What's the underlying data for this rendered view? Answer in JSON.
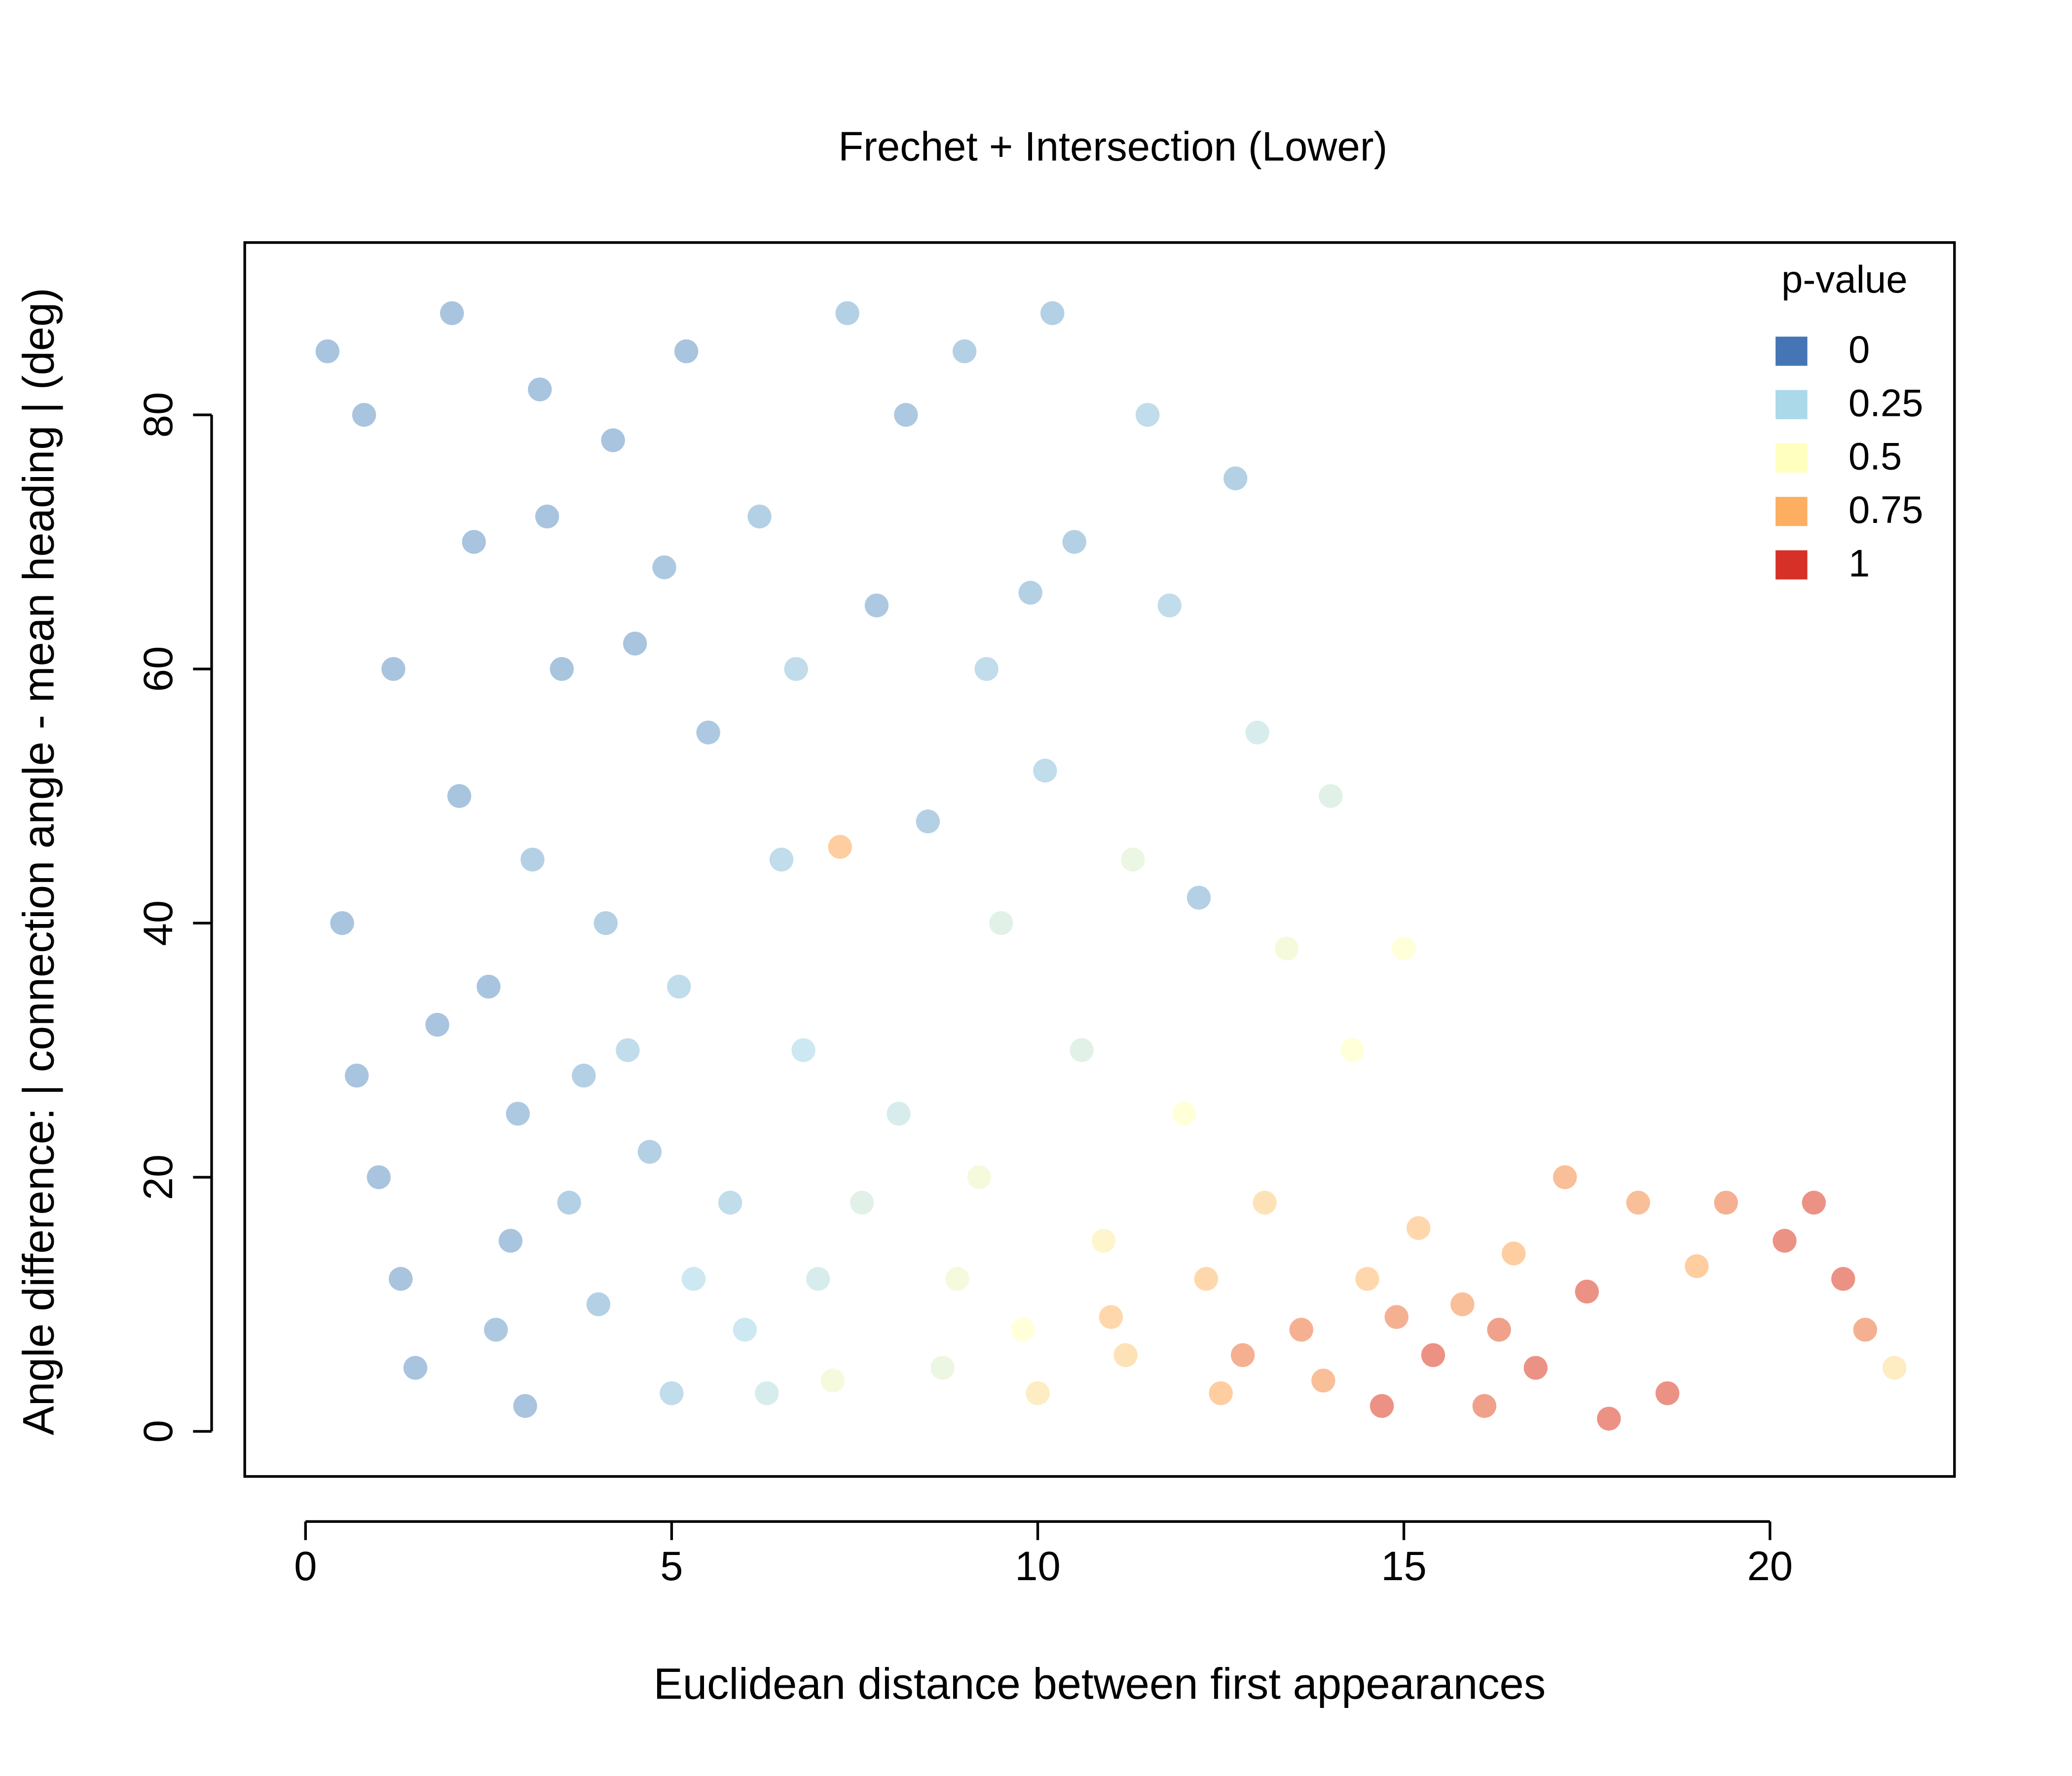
{
  "chart_data": {
    "type": "scatter",
    "title": "Frechet + Intersection (Lower)",
    "x_label": "Euclidean distance between first appearances",
    "y_label": "Angle difference: | connection angle - mean heading | (deg)",
    "xlim": [
      -0.83,
      22.52
    ],
    "ylim": [
      -3.55,
      93.56
    ],
    "xticks": [
      0,
      5,
      10,
      15,
      20
    ],
    "yticks": [
      0,
      20,
      40,
      60,
      80
    ],
    "legend": {
      "title": "p-value",
      "position": "top-right",
      "ticks": [
        0,
        0.25,
        0.5,
        0.75,
        1
      ],
      "colors": [
        "#4575b4",
        "#abd9e9",
        "#ffffbf",
        "#fdae61",
        "#d73027"
      ]
    },
    "x": [
      0.8,
      1.2,
      0.5,
      1.0,
      1.5,
      2,
      2.3,
      2.1,
      2.5,
      2.8,
      3,
      3.2,
      3.5,
      3.1,
      3.8,
      4,
      4.2,
      4.5,
      4.1,
      4.7,
      5,
      5.2,
      5.5,
      5.1,
      5.8,
      6,
      6.2,
      6.5,
      6.8,
      7.0,
      7.4,
      7.8,
      8.2,
      8.5,
      8.1,
      8.7,
      9.0,
      9.3,
      9.5,
      9.2,
      9.8,
      10.2,
      10.5,
      10.1,
      10.6,
      10.9,
      11.2,
      11.5,
      11.8,
      11.3,
      12.0,
      12.3,
      12.5,
      12.7,
      13.0,
      13.4,
      13.1,
      13.6,
      14.0,
      14.3,
      14.5,
      14.7,
      15.0,
      15.2,
      15.4,
      15.8,
      16.1,
      16.5,
      16.8,
      17.2,
      17.5,
      17.8,
      18.2,
      18.6,
      19.0,
      19.4,
      20.2,
      20.6,
      21.0,
      21.3,
      21.7,
      0.7,
      1.8,
      2.6,
      3.6,
      4.4,
      5.3,
      6.3,
      7.2,
      7.6,
      8.9,
      10.0,
      11.0,
      12.8,
      13.9,
      14.9,
      16.3,
      1.3,
      2.9,
      3.3,
      4.9,
      0.3,
      6.7,
      9.9,
      12.2,
      7.3
    ],
    "y": [
      80,
      60,
      40,
      20,
      5,
      88,
      70,
      50,
      35,
      15,
      2,
      82,
      60,
      45,
      28,
      10,
      78,
      62,
      40,
      22,
      3,
      85,
      55,
      35,
      18,
      8,
      72,
      45,
      30,
      12,
      88,
      65,
      80,
      48,
      25,
      5,
      85,
      60,
      40,
      20,
      8,
      88,
      70,
      52,
      30,
      15,
      6,
      80,
      65,
      45,
      25,
      12,
      3,
      75,
      55,
      38,
      18,
      8,
      50,
      30,
      12,
      2,
      38,
      16,
      6,
      10,
      2,
      14,
      5,
      20,
      11,
      1,
      18,
      3,
      13,
      18,
      15,
      18,
      12,
      8,
      5,
      28,
      32,
      8,
      18,
      30,
      12,
      3,
      4,
      18,
      12,
      3,
      9,
      6,
      4,
      9,
      8,
      12,
      25,
      72,
      68,
      85,
      60,
      66,
      42,
      46
    ],
    "pvalue": [
      0.1,
      0.1,
      0.1,
      0.1,
      0.1,
      0.1,
      0.1,
      0.1,
      0.1,
      0.1,
      0.1,
      0.1,
      0.1,
      0.15,
      0.15,
      0.15,
      0.1,
      0.1,
      0.15,
      0.15,
      0.2,
      0.1,
      0.12,
      0.2,
      0.2,
      0.25,
      0.15,
      0.2,
      0.25,
      0.3,
      0.15,
      0.12,
      0.12,
      0.15,
      0.3,
      0.4,
      0.15,
      0.2,
      0.35,
      0.45,
      0.5,
      0.15,
      0.15,
      0.2,
      0.35,
      0.55,
      0.65,
      0.2,
      0.2,
      0.4,
      0.5,
      0.7,
      0.75,
      0.15,
      0.3,
      0.45,
      0.65,
      0.85,
      0.35,
      0.5,
      0.7,
      0.95,
      0.5,
      0.7,
      0.95,
      0.8,
      0.9,
      0.75,
      0.95,
      0.8,
      0.95,
      0.95,
      0.8,
      0.95,
      0.75,
      0.85,
      0.95,
      0.95,
      0.95,
      0.85,
      0.6,
      0.1,
      0.1,
      0.12,
      0.15,
      0.2,
      0.25,
      0.3,
      0.45,
      0.35,
      0.45,
      0.6,
      0.7,
      0.85,
      0.8,
      0.85,
      0.9,
      0.1,
      0.12,
      0.1,
      0.12,
      0.1,
      0.2,
      0.15,
      0.15,
      0.75
    ]
  }
}
